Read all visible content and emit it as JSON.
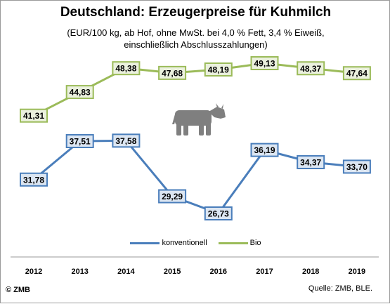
{
  "chart_data": {
    "type": "line",
    "title": "Deutschland: Erzeugerpreise für Kuhmilch",
    "subtitle_line1": "(EUR/100 kg, ab Hof, ohne MwSt. bei 4,0 % Fett, 3,4 % Eiweiß,",
    "subtitle_line2": "einschließlich Abschlusszahlungen)",
    "categories": [
      "2012",
      "2013",
      "2014",
      "2015",
      "2016",
      "2017",
      "2018",
      "2019"
    ],
    "series": [
      {
        "name": "konventionell",
        "values": [
          31.78,
          37.51,
          37.58,
          29.29,
          26.73,
          36.19,
          34.37,
          33.7
        ],
        "labels": [
          "31,78",
          "37,51",
          "37,58",
          "29,29",
          "26,73",
          "36,19",
          "34,37",
          "33,70"
        ],
        "color": "#4a7ebb",
        "label_fill": "#dce6f2"
      },
      {
        "name": "Bio",
        "values": [
          41.31,
          44.83,
          48.38,
          47.68,
          48.19,
          49.13,
          48.37,
          47.64
        ],
        "labels": [
          "41,31",
          "44,83",
          "48,38",
          "47,68",
          "48,19",
          "49,13",
          "48,37",
          "47,64"
        ],
        "color": "#9bbb59",
        "label_fill": "#ebf1de"
      }
    ],
    "legend_position": "bottom",
    "grid": false,
    "axis_line_color": "#9a9a9a",
    "icon": "cow-icon",
    "icon_color": "#7f7f7f"
  },
  "footer": {
    "copyright": "© ZMB",
    "source": "Quelle: ZMB,  BLE."
  }
}
